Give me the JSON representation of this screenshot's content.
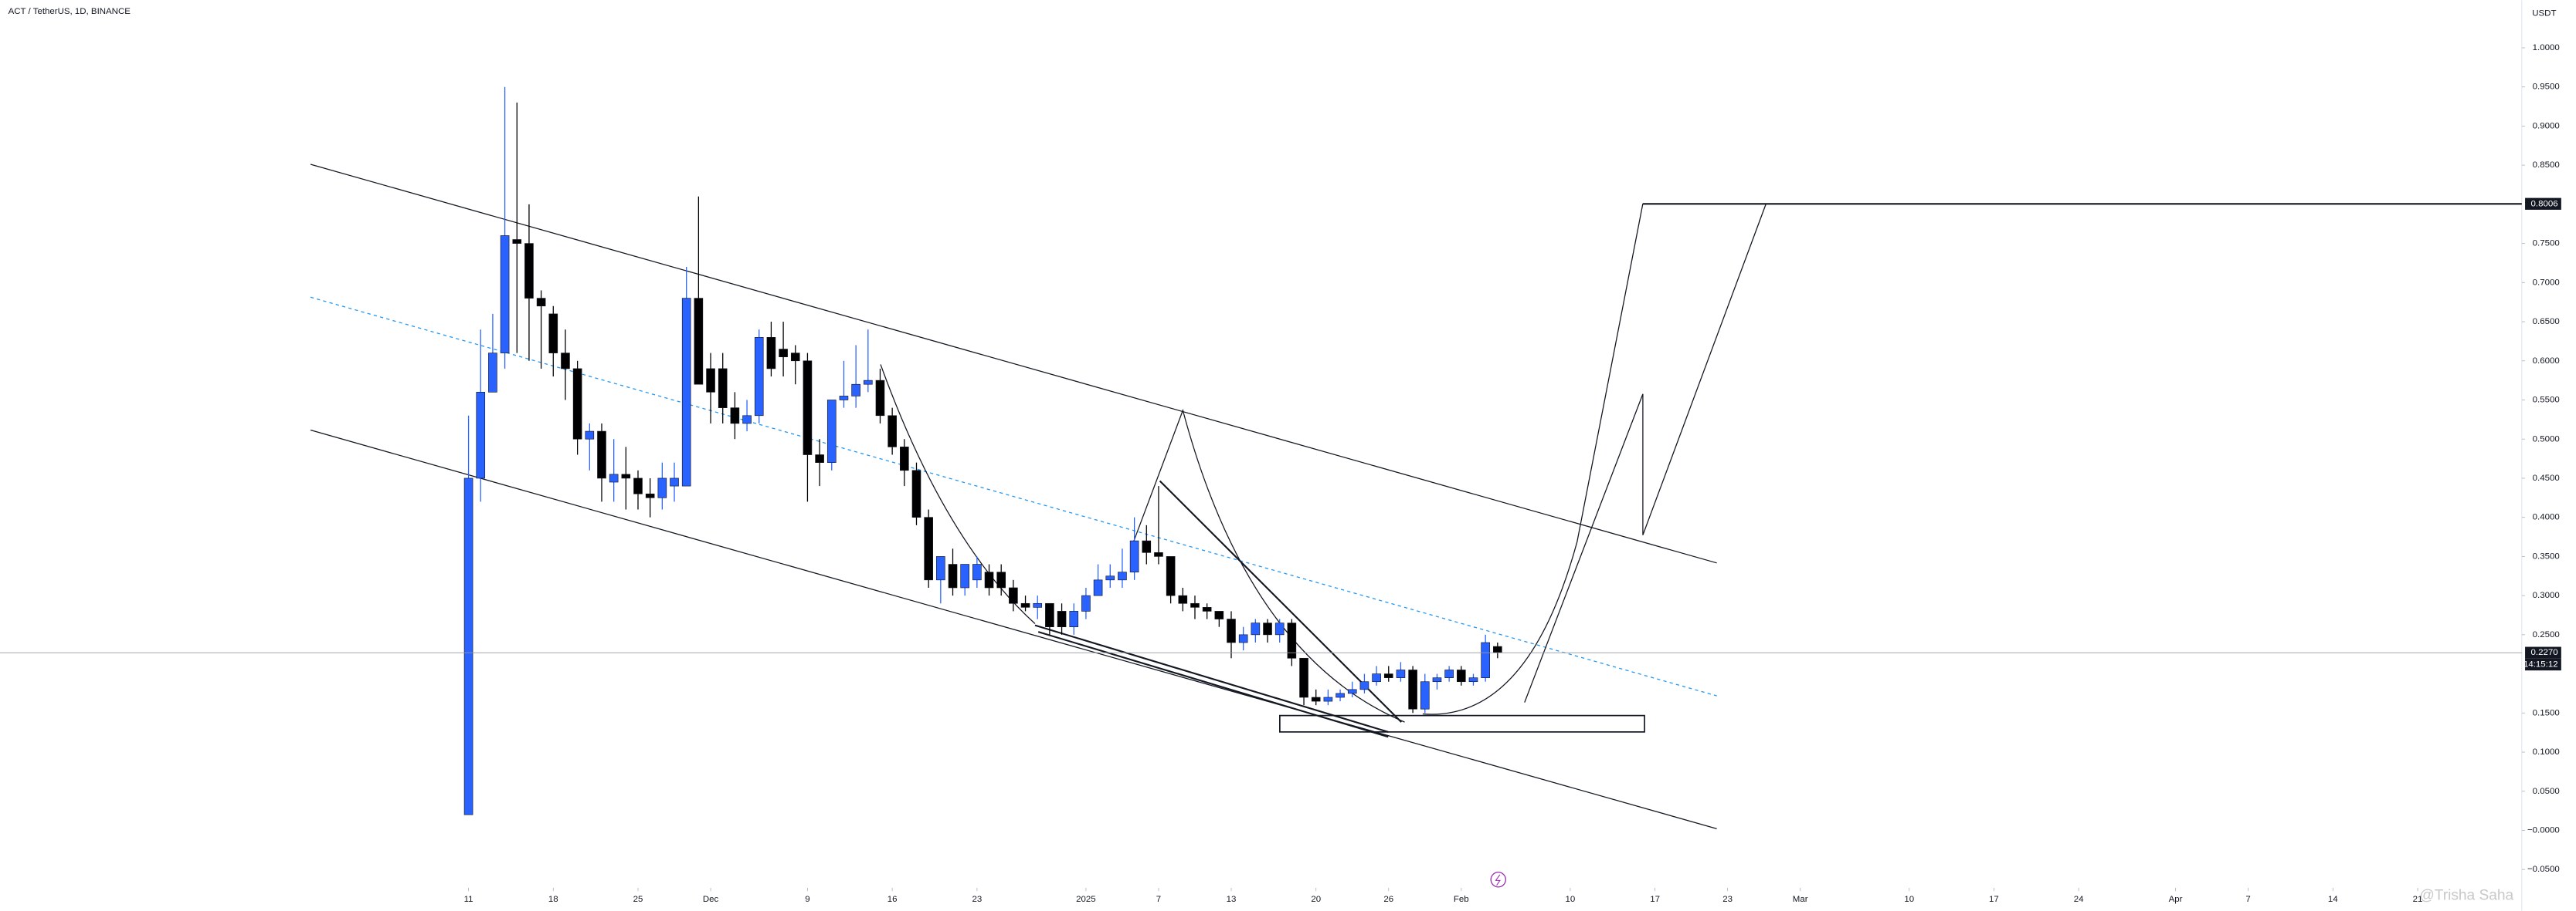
{
  "chart_data": {
    "type": "candlestick",
    "title": "ACT / TetherUS, 1D, BINANCE",
    "y_axis_label": "USDT",
    "up_color": "#2962ff",
    "down_color": "#000000",
    "open": [
      0.02,
      0.45,
      0.56,
      0.61,
      0.755,
      0.75,
      0.68,
      0.66,
      0.61,
      0.59,
      0.5,
      0.51,
      0.445,
      0.455,
      0.45,
      0.43,
      0.425,
      0.44,
      0.44,
      0.68,
      0.59,
      0.59,
      0.54,
      0.52,
      0.53,
      0.63,
      0.615,
      0.61,
      0.6,
      0.48,
      0.47,
      0.55,
      0.555,
      0.57,
      0.575,
      0.53,
      0.49,
      0.46,
      0.4,
      0.32,
      0.34,
      0.31,
      0.32,
      0.33,
      0.33,
      0.31,
      0.29,
      0.285,
      0.29,
      0.28,
      0.26,
      0.28,
      0.3,
      0.32,
      0.32,
      0.33,
      0.37,
      0.355,
      0.35,
      0.3,
      0.29,
      0.285,
      0.28,
      0.27,
      0.24,
      0.25,
      0.265,
      0.25,
      0.265,
      0.22,
      0.17,
      0.165,
      0.17,
      0.175,
      0.18,
      0.19,
      0.2,
      0.195,
      0.205,
      0.155,
      0.19,
      0.195,
      0.205,
      0.19,
      0.195,
      0.235
    ],
    "high": [
      0.53,
      0.64,
      0.66,
      0.95,
      0.93,
      0.8,
      0.69,
      0.67,
      0.64,
      0.6,
      0.52,
      0.52,
      0.5,
      0.49,
      0.46,
      0.45,
      0.47,
      0.47,
      0.72,
      0.81,
      0.61,
      0.61,
      0.56,
      0.55,
      0.64,
      0.65,
      0.65,
      0.62,
      0.61,
      0.5,
      0.55,
      0.6,
      0.62,
      0.64,
      0.59,
      0.54,
      0.5,
      0.47,
      0.41,
      0.35,
      0.36,
      0.34,
      0.35,
      0.34,
      0.34,
      0.32,
      0.3,
      0.3,
      0.29,
      0.29,
      0.29,
      0.31,
      0.34,
      0.34,
      0.36,
      0.4,
      0.39,
      0.44,
      0.35,
      0.31,
      0.3,
      0.29,
      0.28,
      0.28,
      0.26,
      0.27,
      0.27,
      0.27,
      0.27,
      0.22,
      0.18,
      0.18,
      0.18,
      0.19,
      0.2,
      0.21,
      0.21,
      0.215,
      0.21,
      0.2,
      0.2,
      0.21,
      0.21,
      0.2,
      0.25,
      0.24
    ],
    "low": [
      0.02,
      0.42,
      0.56,
      0.59,
      0.61,
      0.6,
      0.59,
      0.58,
      0.55,
      0.48,
      0.46,
      0.42,
      0.42,
      0.41,
      0.41,
      0.4,
      0.41,
      0.42,
      0.44,
      0.57,
      0.52,
      0.52,
      0.5,
      0.51,
      0.52,
      0.58,
      0.58,
      0.57,
      0.42,
      0.44,
      0.46,
      0.54,
      0.54,
      0.56,
      0.52,
      0.48,
      0.44,
      0.39,
      0.31,
      0.29,
      0.3,
      0.3,
      0.31,
      0.3,
      0.3,
      0.28,
      0.28,
      0.27,
      0.25,
      0.25,
      0.25,
      0.27,
      0.3,
      0.31,
      0.31,
      0.32,
      0.34,
      0.34,
      0.29,
      0.28,
      0.27,
      0.27,
      0.26,
      0.22,
      0.23,
      0.24,
      0.24,
      0.24,
      0.21,
      0.16,
      0.16,
      0.16,
      0.165,
      0.17,
      0.175,
      0.185,
      0.19,
      0.19,
      0.15,
      0.15,
      0.18,
      0.19,
      0.185,
      0.185,
      0.19,
      0.22
    ],
    "close": [
      0.45,
      0.56,
      0.61,
      0.76,
      0.75,
      0.68,
      0.67,
      0.61,
      0.59,
      0.5,
      0.51,
      0.45,
      0.455,
      0.45,
      0.43,
      0.425,
      0.45,
      0.45,
      0.68,
      0.57,
      0.56,
      0.54,
      0.52,
      0.53,
      0.63,
      0.59,
      0.605,
      0.6,
      0.48,
      0.47,
      0.55,
      0.555,
      0.57,
      0.575,
      0.53,
      0.49,
      0.46,
      0.4,
      0.32,
      0.35,
      0.31,
      0.34,
      0.34,
      0.31,
      0.31,
      0.29,
      0.285,
      0.29,
      0.26,
      0.26,
      0.28,
      0.3,
      0.32,
      0.325,
      0.33,
      0.37,
      0.355,
      0.35,
      0.3,
      0.29,
      0.285,
      0.28,
      0.27,
      0.24,
      0.25,
      0.265,
      0.25,
      0.265,
      0.22,
      0.17,
      0.165,
      0.17,
      0.175,
      0.18,
      0.19,
      0.2,
      0.195,
      0.205,
      0.155,
      0.19,
      0.195,
      0.205,
      0.19,
      0.195,
      0.24,
      0.227
    ],
    "xlim": [
      -38.7,
      169.6
    ],
    "xticks": [
      {
        "value": 0,
        "label": "11"
      },
      {
        "value": 7,
        "label": "18"
      },
      {
        "value": 14,
        "label": "25"
      },
      {
        "value": 20,
        "label": "Dec"
      },
      {
        "value": 28,
        "label": "9"
      },
      {
        "value": 35,
        "label": "16"
      },
      {
        "value": 42,
        "label": "23"
      },
      {
        "value": 51,
        "label": "2025"
      },
      {
        "value": 57,
        "label": "7"
      },
      {
        "value": 63,
        "label": "13"
      },
      {
        "value": 70,
        "label": "20"
      },
      {
        "value": 76,
        "label": "26"
      },
      {
        "value": 82,
        "label": "Feb"
      },
      {
        "value": 91,
        "label": "10"
      },
      {
        "value": 98,
        "label": "17"
      },
      {
        "value": 104,
        "label": "23"
      },
      {
        "value": 110,
        "label": "Mar"
      },
      {
        "value": 119,
        "label": "10"
      },
      {
        "value": 126,
        "label": "17"
      },
      {
        "value": 133,
        "label": "24"
      },
      {
        "value": 141,
        "label": "Apr"
      },
      {
        "value": 147,
        "label": "7"
      },
      {
        "value": 154,
        "label": "14"
      },
      {
        "value": 161,
        "label": "21"
      }
    ],
    "ylim": [
      -0.0713,
      1.0608
    ],
    "yticks": [
      {
        "value": 1,
        "label": "1.0000"
      },
      {
        "value": 0.95,
        "label": "0.9500"
      },
      {
        "value": 0.9,
        "label": "0.9000"
      },
      {
        "value": 0.85,
        "label": "0.8500"
      },
      {
        "value": 0.75,
        "label": "0.7500"
      },
      {
        "value": 0.7,
        "label": "0.7000"
      },
      {
        "value": 0.65,
        "label": "0.6500"
      },
      {
        "value": 0.6,
        "label": "0.6000"
      },
      {
        "value": 0.55,
        "label": "0.5500"
      },
      {
        "value": 0.5,
        "label": "0.5000"
      },
      {
        "value": 0.45,
        "label": "0.4500"
      },
      {
        "value": 0.4,
        "label": "0.4000"
      },
      {
        "value": 0.35,
        "label": "0.3500"
      },
      {
        "value": 0.3,
        "label": "0.3000"
      },
      {
        "value": 0.25,
        "label": "0.2500"
      },
      {
        "value": 0.15,
        "label": "0.1500"
      },
      {
        "value": 0.1,
        "label": "0.1000"
      },
      {
        "value": 0.05,
        "label": "0.0500"
      },
      {
        "value": 0,
        "label": "−0.0000"
      },
      {
        "value": -0.05,
        "label": "−0.0500"
      }
    ],
    "last_price": {
      "value": 0.227,
      "label": "0.2270"
    },
    "countdown": "14:15:12",
    "target_level": {
      "value": 0.8006,
      "label": "0.8006"
    },
    "watermark": "@Trisha Saha"
  }
}
